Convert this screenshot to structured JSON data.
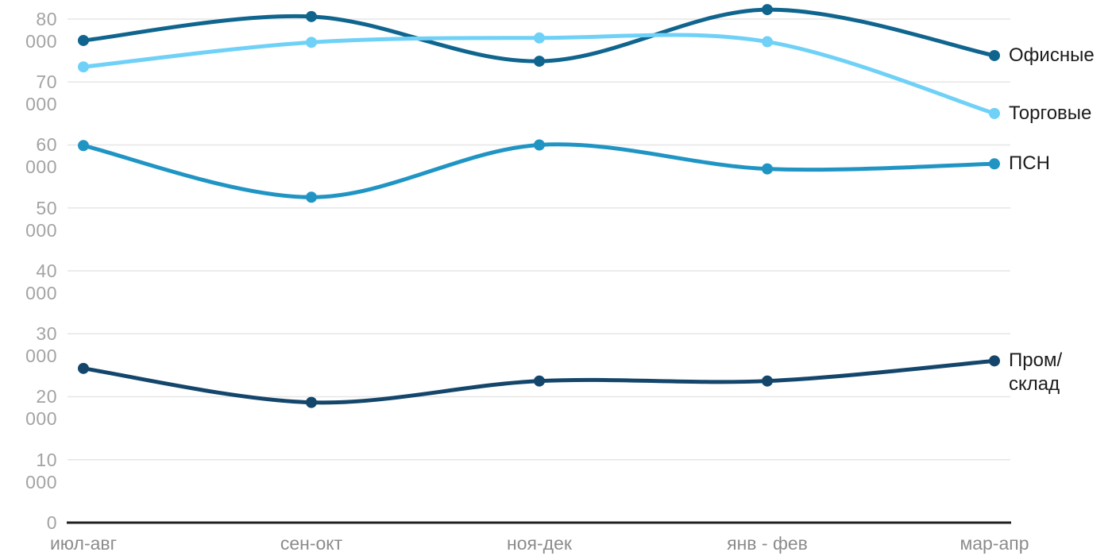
{
  "chart_data": {
    "type": "line",
    "title": "",
    "xlabel": "",
    "ylabel": "",
    "x_categories": [
      "июл-авг",
      "сен-окт",
      "ноя-дек",
      "янв - фев",
      "мар-апр"
    ],
    "series": [
      {
        "key": "ofisnye",
        "name": "Офисные",
        "label_lines": [
          "Офисные"
        ],
        "color": "#10658e",
        "values": [
          76600,
          80400,
          73300,
          81500,
          74200
        ]
      },
      {
        "key": "torgovye",
        "name": "Торговые",
        "label_lines": [
          "Торговые"
        ],
        "color": "#6fd1f7",
        "values": [
          72400,
          76300,
          77000,
          76400,
          65000
        ]
      },
      {
        "key": "psn",
        "name": "ПСН",
        "label_lines": [
          "ПСН"
        ],
        "color": "#2095c4",
        "values": [
          59900,
          51700,
          60000,
          56200,
          57000
        ]
      },
      {
        "key": "prom-sklad",
        "name": "Пром/склад",
        "label_lines": [
          "Пром/",
          "склад"
        ],
        "color": "#14466b",
        "values": [
          24500,
          19100,
          22500,
          22500,
          25700
        ]
      }
    ],
    "y_axis": {
      "min": 0,
      "max": 80000,
      "tick_interval": 10000,
      "tick_labels": [
        "80 000",
        "70 000",
        "60 000",
        "50 000",
        "40 000",
        "30 000",
        "20 000",
        "10 000",
        "0"
      ]
    },
    "grid": true,
    "legend_position": "right-end-labels",
    "interpolation": "smooth"
  },
  "colors": {
    "background": "#ffffff",
    "gridline": "#e6e6e6",
    "axis_line": "#1f1f1f",
    "y_tick_text": "#a3a3a3",
    "x_tick_text": "#8c8c8c",
    "series_label_text": "#1c1c1c"
  }
}
